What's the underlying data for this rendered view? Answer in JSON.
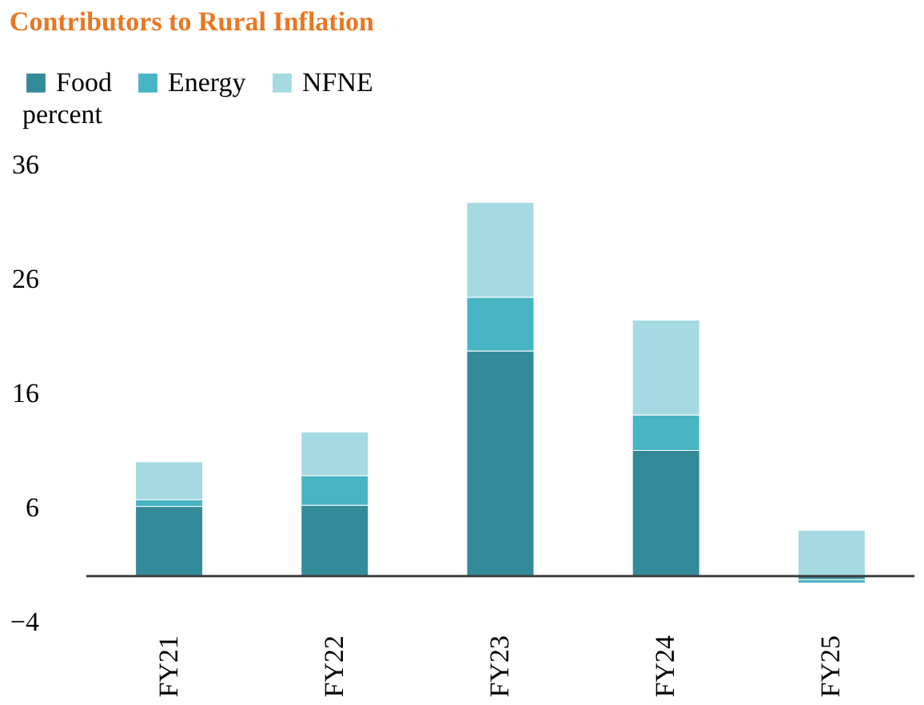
{
  "chart_data": {
    "type": "bar",
    "title": "Contributors to Rural Inflation",
    "ylabel": "percent",
    "categories": [
      "FY21",
      "FY22",
      "FY23",
      "FY24",
      "FY25"
    ],
    "series": [
      {
        "name": "Food",
        "color": "#338b9a",
        "values": [
          6.1,
          6.2,
          19.7,
          11.0,
          -0.3
        ]
      },
      {
        "name": "Energy",
        "color": "#48b5c4",
        "values": [
          0.6,
          2.6,
          4.7,
          3.1,
          -0.3
        ]
      },
      {
        "name": "NFNE",
        "color": "#a5dae2",
        "values": [
          3.3,
          3.8,
          8.3,
          8.3,
          4.0
        ]
      }
    ],
    "stacked": true,
    "ylim": [
      -4,
      36
    ],
    "yticks": [
      -4,
      6,
      16,
      26,
      36
    ],
    "grid": false,
    "legend": "top left"
  }
}
